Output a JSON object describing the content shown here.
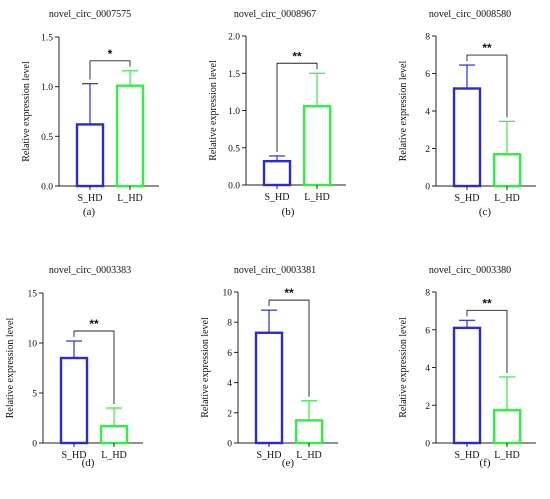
{
  "colors": {
    "s_hd": "#2b2bd6",
    "l_hd": "#33ee44",
    "axis": "#222222"
  },
  "chart_data": [
    {
      "type": "bar",
      "panel": "(a)",
      "title": "novel_circ_0007575",
      "ylabel": "Relative expression level",
      "categories": [
        "S_HD",
        "L_HD"
      ],
      "values": [
        0.62,
        1.01
      ],
      "error": [
        0.41,
        0.15
      ],
      "ylim": [
        0,
        1.5
      ],
      "yticks": [
        "0.0",
        "0.5",
        "1.0",
        "1.5"
      ],
      "significance": "*"
    },
    {
      "type": "bar",
      "panel": "(b)",
      "title": "novel_circ_0008967",
      "ylabel": "Relative expression level",
      "categories": [
        "S_HD",
        "L_HD"
      ],
      "values": [
        0.32,
        1.06
      ],
      "error": [
        0.07,
        0.44
      ],
      "ylim": [
        0,
        2.0
      ],
      "yticks": [
        "0.0",
        "0.5",
        "1.0",
        "1.5",
        "2.0"
      ],
      "significance": "**"
    },
    {
      "type": "bar",
      "panel": "(c)",
      "title": "novel_circ_0008580",
      "ylabel": "Relative expression level",
      "categories": [
        "S_HD",
        "L_HD"
      ],
      "values": [
        5.2,
        1.7
      ],
      "error": [
        1.25,
        1.75
      ],
      "ylim": [
        0,
        8
      ],
      "yticks": [
        "0",
        "2",
        "4",
        "6",
        "8"
      ],
      "significance": "**"
    },
    {
      "type": "bar",
      "panel": "(d)",
      "title": "novel_circ_0003383",
      "ylabel": "Relative expression level",
      "categories": [
        "S_HD",
        "L_HD"
      ],
      "values": [
        8.5,
        1.7
      ],
      "error": [
        1.7,
        1.8
      ],
      "ylim": [
        0,
        15
      ],
      "yticks": [
        "0",
        "5",
        "10",
        "15"
      ],
      "significance": "**"
    },
    {
      "type": "bar",
      "panel": "(e)",
      "title": "novel_circ_0003381",
      "ylabel": "Relative expression level",
      "categories": [
        "S_HD",
        "L_HD"
      ],
      "values": [
        7.3,
        1.5
      ],
      "error": [
        1.5,
        1.3
      ],
      "ylim": [
        0,
        10
      ],
      "yticks": [
        "0",
        "2",
        "4",
        "6",
        "8",
        "10"
      ],
      "significance": "**"
    },
    {
      "type": "bar",
      "panel": "(f)",
      "title": "novel_circ_0003380",
      "ylabel": "Relative expression level",
      "categories": [
        "S_HD",
        "L_HD"
      ],
      "values": [
        6.1,
        1.75
      ],
      "error": [
        0.4,
        1.75
      ],
      "ylim": [
        0,
        8
      ],
      "yticks": [
        "0",
        "2",
        "4",
        "6",
        "8"
      ],
      "significance": "**"
    }
  ]
}
